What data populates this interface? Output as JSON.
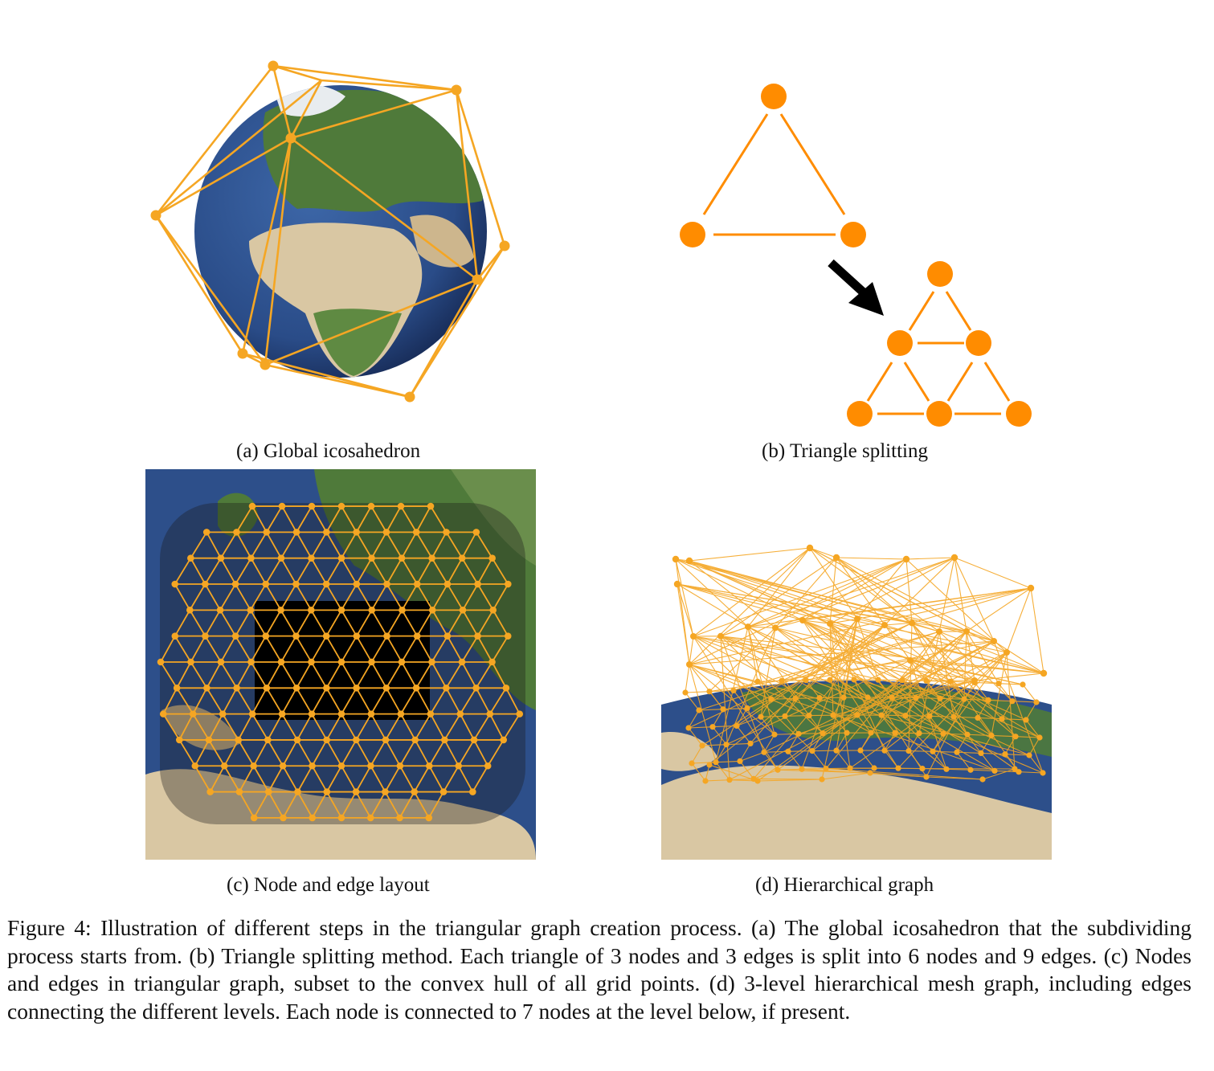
{
  "subfigures": {
    "a": {
      "caption": "(a) Global icosahedron",
      "image": "icosahedron-over-globe"
    },
    "b": {
      "caption": "(b) Triangle splitting",
      "image": "triangle-splitting-diagram"
    },
    "c": {
      "caption": "(c) Node and edge layout",
      "image": "regional-mesh-over-map"
    },
    "d": {
      "caption": "(d) Hierarchical graph",
      "image": "hierarchical-mesh-over-globe"
    }
  },
  "figure_caption": "Figure 4: Illustration of different steps in the triangular graph creation process. (a) The global icosahedron that the subdividing process starts from. (b) Triangle splitting method. Each triangle of 3 nodes and 3 edges is split into 6 nodes and 9 edges. (c) Nodes and edges in triangular graph, subset to the convex hull of all grid points. (d) 3-level hierarchical mesh graph, including edges connecting the different levels. Each node is connected to 7 nodes at the level below, if present.",
  "colors": {
    "mesh_orange": "#f5a623",
    "node_orange": "#ff8c00",
    "ocean_blue": "#2d4f8a",
    "land_tan": "#d9c7a3",
    "land_green": "#4f7a3a",
    "arrow_black": "#000000"
  }
}
